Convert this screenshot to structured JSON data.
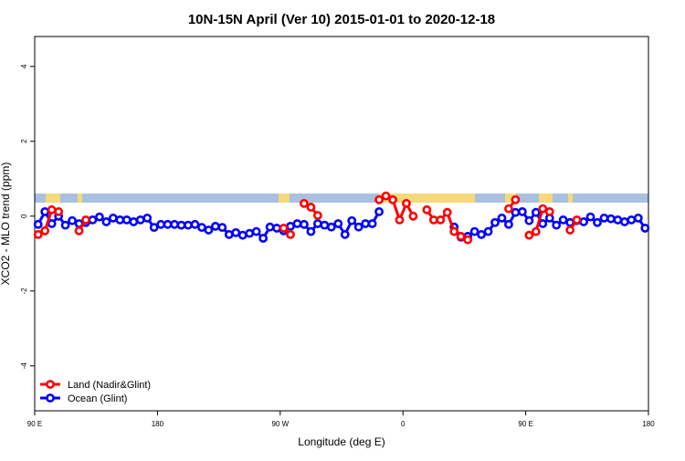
{
  "chart_data": {
    "type": "line",
    "title": "10N-15N April (Ver 10)   2015-01-01 to 2020-12-18",
    "x_label": "Longitude (deg E)",
    "y_label": "XCO2 - MLO trend (ppm)",
    "x": [
      92.5,
      97.5,
      102.5,
      107.5,
      112.5,
      117.5,
      122.5,
      127.5,
      132.5,
      137.5,
      142.5,
      147.5,
      152.5,
      157.5,
      162.5,
      167.5,
      172.5,
      177.5,
      182.5,
      187.5,
      192.5,
      197.5,
      202.5,
      207.5,
      212.5,
      217.5,
      222.5,
      227.5,
      232.5,
      237.5,
      242.5,
      247.5,
      252.5,
      257.5,
      262.5,
      267.5,
      272.5,
      277.5,
      282.5,
      287.5,
      292.5,
      297.5,
      302.5,
      307.5,
      312.5,
      317.5,
      322.5,
      327.5,
      332.5,
      337.5,
      342.5,
      347.5,
      352.5,
      357.5,
      362.5,
      367.5,
      372.5,
      377.5,
      382.5,
      387.5,
      392.5,
      397.5,
      402.5,
      407.5,
      412.5,
      417.5,
      422.5,
      427.5,
      432.5,
      437.5,
      442.5,
      447.5,
      452.5,
      457.5,
      462.5,
      467.5,
      472.5,
      477.5,
      482.5,
      487.5,
      492.5,
      497.5,
      502.5,
      507.5,
      512.5,
      517.5,
      522.5,
      527.5,
      532.5,
      537.5
    ],
    "series": [
      {
        "name": "Land (Nadir&Glint)",
        "color": "#ff0000",
        "values": [
          -0.49,
          -0.39,
          0.17,
          0.12,
          null,
          null,
          -0.39,
          -0.1,
          null,
          null,
          null,
          null,
          null,
          null,
          null,
          null,
          null,
          null,
          null,
          null,
          null,
          null,
          null,
          null,
          null,
          null,
          null,
          null,
          null,
          null,
          null,
          null,
          null,
          null,
          null,
          null,
          -0.32,
          -0.49,
          null,
          0.34,
          0.24,
          0.02,
          null,
          null,
          null,
          null,
          null,
          null,
          null,
          null,
          0.44,
          0.54,
          0.44,
          -0.1,
          0.34,
          0,
          null,
          0.17,
          -0.1,
          -0.1,
          0.1,
          -0.41,
          -0.54,
          -0.63,
          null,
          null,
          null,
          null,
          null,
          0.2,
          0.44,
          null,
          -0.51,
          -0.41,
          0.2,
          0.12,
          null,
          null,
          -0.37,
          -0.1,
          null,
          null,
          null,
          null,
          null,
          null,
          null,
          null,
          null,
          null
        ]
      },
      {
        "name": "Ocean (Glint)",
        "color": "#0000ff",
        "values": [
          -0.22,
          0.12,
          -0.2,
          0,
          -0.24,
          -0.12,
          -0.2,
          -0.17,
          -0.1,
          -0.02,
          -0.15,
          -0.05,
          -0.1,
          -0.1,
          -0.15,
          -0.1,
          -0.05,
          -0.3,
          -0.22,
          -0.22,
          -0.22,
          -0.24,
          -0.24,
          -0.22,
          -0.3,
          -0.37,
          -0.27,
          -0.3,
          -0.49,
          -0.44,
          -0.51,
          -0.46,
          -0.41,
          -0.59,
          -0.29,
          -0.32,
          -0.39,
          -0.27,
          -0.2,
          -0.22,
          -0.41,
          -0.2,
          -0.24,
          -0.29,
          -0.2,
          -0.49,
          -0.12,
          -0.29,
          -0.2,
          -0.2,
          0.12,
          null,
          null,
          null,
          null,
          null,
          null,
          null,
          null,
          null,
          null,
          -0.29,
          -0.56,
          -0.54,
          -0.41,
          -0.49,
          -0.41,
          -0.17,
          -0.05,
          -0.22,
          0.1,
          0.12,
          -0.12,
          0.1,
          -0.2,
          -0.05,
          -0.24,
          -0.1,
          -0.17,
          -0.12,
          -0.15,
          -0.02,
          -0.17,
          -0.05,
          -0.07,
          -0.1,
          -0.15,
          -0.1,
          -0.05,
          -0.32
        ]
      }
    ],
    "xlim": [
      90,
      540
    ],
    "xticks": [
      {
        "value": 90,
        "label": "90 E"
      },
      180,
      {
        "value": 270,
        "label": "90 W"
      },
      {
        "value": 360,
        "label": "0"
      },
      {
        "value": 450,
        "label": "90 E"
      },
      {
        "value": 540,
        "label": "180"
      }
    ],
    "ylim": [
      -5.2,
      4.8
    ],
    "yticks": [
      -4,
      -2,
      0,
      2,
      4
    ],
    "legend": "bottom-left"
  }
}
